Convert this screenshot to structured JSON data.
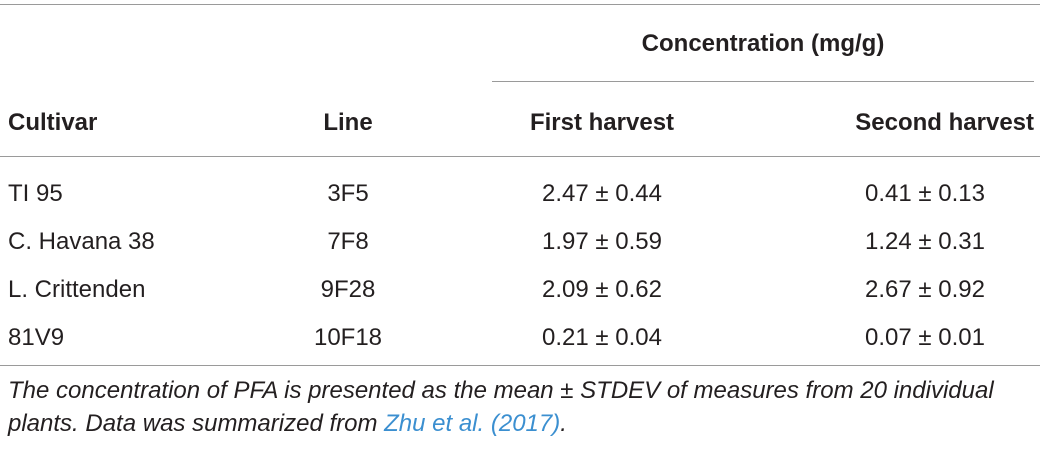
{
  "table": {
    "group_header": "Concentration (mg/g)",
    "columns": {
      "cultivar": "Cultivar",
      "line": "Line",
      "first": "First harvest",
      "second": "Second harvest"
    },
    "rows": [
      {
        "cultivar": "TI 95",
        "line": "3F5",
        "first": "2.47 ± 0.44",
        "second": "0.41 ± 0.13"
      },
      {
        "cultivar": "C. Havana 38",
        "line": "7F8",
        "first": "1.97 ± 0.59",
        "second": "1.24 ± 0.31"
      },
      {
        "cultivar": "L. Crittenden",
        "line": "9F28",
        "first": "2.09 ± 0.62",
        "second": "2.67 ± 0.92"
      },
      {
        "cultivar": "81V9",
        "line": "10F18",
        "first": "0.21 ± 0.04",
        "second": "0.07 ± 0.01"
      }
    ]
  },
  "footnote": {
    "text_before": "The concentration of PFA is presented as the mean ± STDEV of measures from 20 individual plants. Data was summarized from ",
    "citation": "Zhu et al. (2017)",
    "text_after": "."
  },
  "colors": {
    "text": "#231f20",
    "rule": "#9a9a9a",
    "link": "#3b8fd0"
  }
}
